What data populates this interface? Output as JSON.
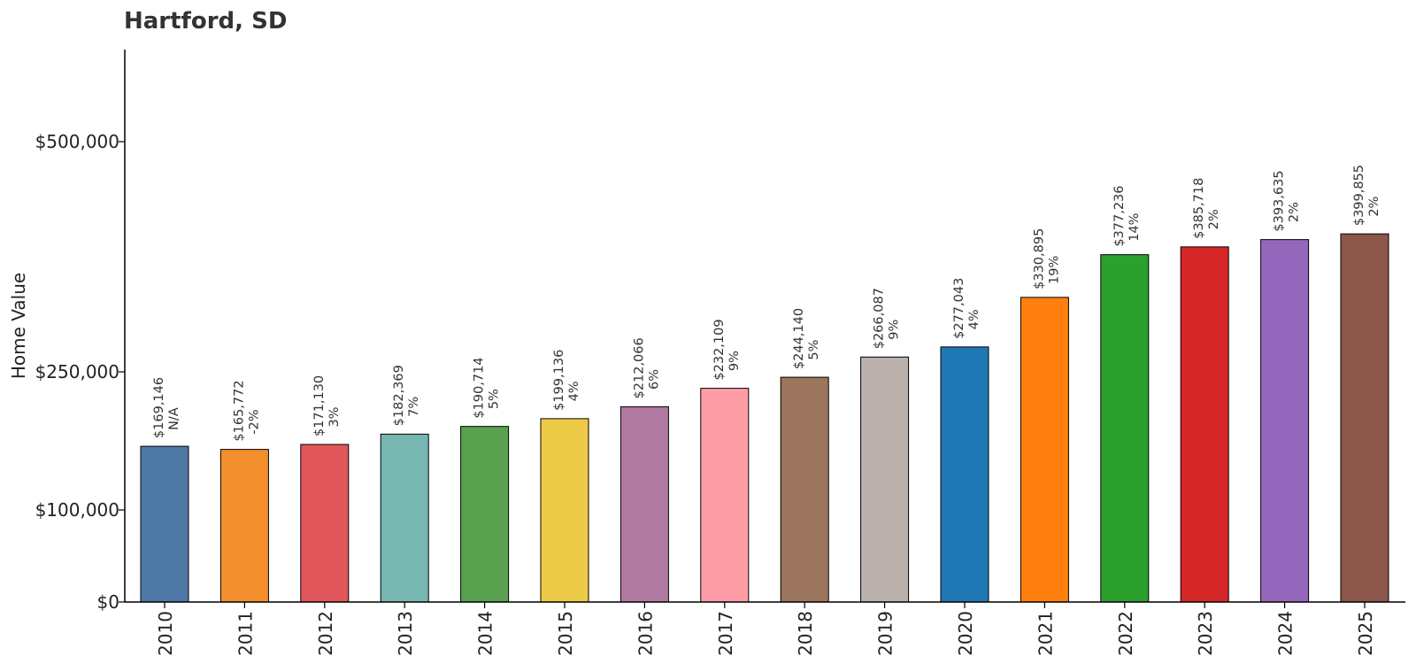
{
  "chart_data": {
    "type": "bar",
    "title": "Hartford, SD",
    "xlabel": "",
    "ylabel": "Home Value",
    "ylim": [
      0,
      600000
    ],
    "yticks": [
      {
        "value": 0,
        "label": "$0"
      },
      {
        "value": 100000,
        "label": "$100,000"
      },
      {
        "value": 250000,
        "label": "$250,000"
      },
      {
        "value": 500000,
        "label": "$500,000"
      }
    ],
    "grid": false,
    "categories": [
      "2010",
      "2011",
      "2012",
      "2013",
      "2014",
      "2015",
      "2016",
      "2017",
      "2018",
      "2019",
      "2020",
      "2021",
      "2022",
      "2023",
      "2024",
      "2025"
    ],
    "values": [
      169146,
      165772,
      171130,
      182369,
      190714,
      199136,
      212066,
      232109,
      244140,
      266087,
      277043,
      330895,
      377236,
      385718,
      393635,
      399855
    ],
    "value_labels": [
      "$169,146",
      "$165,772",
      "$171,130",
      "$182,369",
      "$190,714",
      "$199,136",
      "$212,066",
      "$232,109",
      "$244,140",
      "$266,087",
      "$277,043",
      "$330,895",
      "$377,236",
      "$385,718",
      "$393,635",
      "$399,855"
    ],
    "change_labels": [
      "N/A",
      "-2%",
      "3%",
      "7%",
      "5%",
      "4%",
      "6%",
      "9%",
      "5%",
      "9%",
      "4%",
      "19%",
      "14%",
      "2%",
      "2%",
      "2%"
    ],
    "colors": [
      "#4e79a7",
      "#f28e2b",
      "#e15759",
      "#76b7b2",
      "#59a14f",
      "#edc948",
      "#b07aa1",
      "#ff9da7",
      "#9c755f",
      "#bab0ac",
      "#1f77b4",
      "#ff7f0e",
      "#2ca02c",
      "#d62728",
      "#9467bd",
      "#8c564b"
    ]
  }
}
